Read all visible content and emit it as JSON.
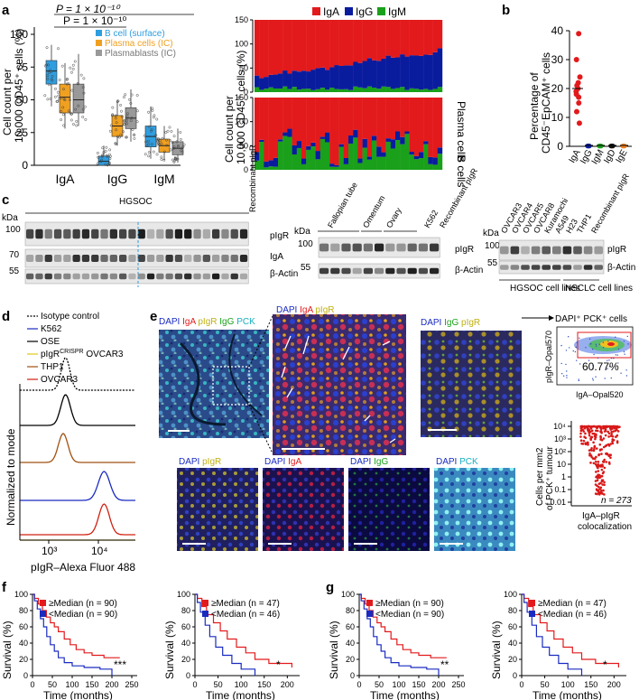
{
  "panel_labels": {
    "a": "a",
    "b": "b",
    "c": "c",
    "d": "d",
    "e": "e",
    "f": "f",
    "g": "g"
  },
  "colors": {
    "iga": "#e31a1c",
    "igg": "#0a1c9e",
    "igm": "#1aa01a",
    "bcell": "#2f9ee0",
    "plasma": "#f0a020",
    "blast": "#999999",
    "igd": "#111111",
    "ige": "#f08020"
  },
  "a": {
    "ylabel_1": "Cell count per",
    "ylabel_2": "10,000 CD45⁺ cells (%)",
    "pval_1": "P = 1 × 10⁻¹⁰",
    "pval_2": "P = 1 × 10⁻¹⁰",
    "legend": [
      "B cell (surface)",
      "Plasma cells (IC)",
      "Plasmablasts (IC)"
    ],
    "yticks": [
      "0",
      "25",
      "50",
      "75",
      "100"
    ],
    "xticks": [
      "IgA",
      "IgG",
      "IgM"
    ],
    "stack_ylabel_1": "Cell count  per",
    "stack_ylabel_2": "10,000 CD45⁺ cells (%)",
    "stack_legend": [
      "IgA",
      "IgG",
      "IgM"
    ],
    "stack_yticks": [
      "0",
      "50",
      "100",
      "150"
    ],
    "stack_top_label": "Plasma cells",
    "stack_bottom_label": "B cells"
  },
  "b": {
    "ylabel_1": "Percentage of",
    "ylabel_2": "CD45⁻EpCAM⁺ cells",
    "yticks": [
      "0",
      "10",
      "20",
      "30",
      "40"
    ],
    "xticks": [
      "IgA",
      "IgG",
      "IgM",
      "IgD",
      "IgE"
    ]
  },
  "c": {
    "kda": "kDa",
    "blot1": {
      "header": "HGSOC",
      "recombinant": "Recombinant pIgR",
      "markers": [
        "100",
        "70",
        "55"
      ],
      "rows": [
        "pIgR",
        "IgA",
        "β-Actin"
      ]
    },
    "blot2": {
      "headers": [
        "Fallopian tube",
        "Omentum",
        "Ovary",
        "K562"
      ],
      "recombinant": "Recombinant pIgR",
      "markers": [
        "100",
        "55"
      ],
      "rows": [
        "pIgR",
        "β-Actin"
      ]
    },
    "blot3": {
      "headers": [
        "OVCAR3",
        "OVCAR4",
        "OVCAR5",
        "OVCAR8",
        "Kuramochi",
        "A549",
        "H23",
        "THP1"
      ],
      "recombinant": "Recombinant pIgR",
      "markers": [
        "100",
        "55"
      ],
      "rows": [
        "pIgR",
        "β-Actin"
      ],
      "group1": "HGSOC cell lines",
      "group2": "NSCLC cell lines"
    }
  },
  "d": {
    "legend": [
      "Isotype control",
      "K562",
      "OSE",
      "pIgR",
      "CRISPR",
      "OVCAR3",
      "THP1",
      "OVCAR3"
    ],
    "ylabel": "Normalized to mode",
    "xlabel": "pIgR–Alexa Fluor 488",
    "xticks": [
      "10³",
      "10⁴"
    ]
  },
  "e": {
    "label1": [
      "DAPI",
      "IgA",
      "pIgR",
      "IgG",
      "PCK"
    ],
    "label2": [
      "DAPI",
      "IgA",
      "pIgR"
    ],
    "label3": [
      "DAPI",
      "IgG",
      "pIgR"
    ],
    "small_labels": [
      [
        "DAPI",
        "pIgR"
      ],
      [
        "DAPI",
        "IgA"
      ],
      [
        "DAPI",
        "IgG"
      ],
      [
        "DAPI",
        "PCK"
      ]
    ],
    "flow_title": "DAPI⁺ PCK⁺ cells",
    "flow_pct": "60.77%",
    "flow_ylabel": "pIgR–Opal570",
    "flow_xlabel": "IgA–Opal520",
    "dens_ylabel_1": "Cells per mm2",
    "dens_ylabel_2": "of PCK⁺ tumour",
    "dens_yticks": [
      "10⁴",
      "10³",
      "10²",
      "10",
      "1",
      "0.1",
      "0.01"
    ],
    "dens_n": "n = 273",
    "dens_xlabel_1": "IgA–pIgR",
    "dens_xlabel_2": "colocalization"
  },
  "surv": {
    "ylabel": "Survival (%)",
    "xlabel": "Time (months)",
    "yticks": [
      "0",
      "20",
      "40",
      "60",
      "80",
      "100"
    ],
    "f1": {
      "legend": [
        "≥Median (n = 90)",
        "<Median (n = 90)"
      ],
      "xticks": [
        "0",
        "50",
        "100",
        "150",
        "200",
        "250"
      ],
      "sig": "***"
    },
    "f2": {
      "legend": [
        "≥Median (n = 47)",
        "<Median (n = 46)"
      ],
      "xticks": [
        "0",
        "50",
        "100",
        "150",
        "200"
      ],
      "sig": "*"
    },
    "g1": {
      "legend": [
        "≥Median (n = 90)",
        "<Median (n = 90)"
      ],
      "xticks": [
        "0",
        "50",
        "100",
        "150",
        "200",
        "250"
      ],
      "sig": "**"
    },
    "g2": {
      "legend": [
        "≥Median (n = 47)",
        "<Median (n = 46)"
      ],
      "xticks": [
        "0",
        "50",
        "100",
        "150",
        "200"
      ],
      "sig": "*"
    }
  }
}
